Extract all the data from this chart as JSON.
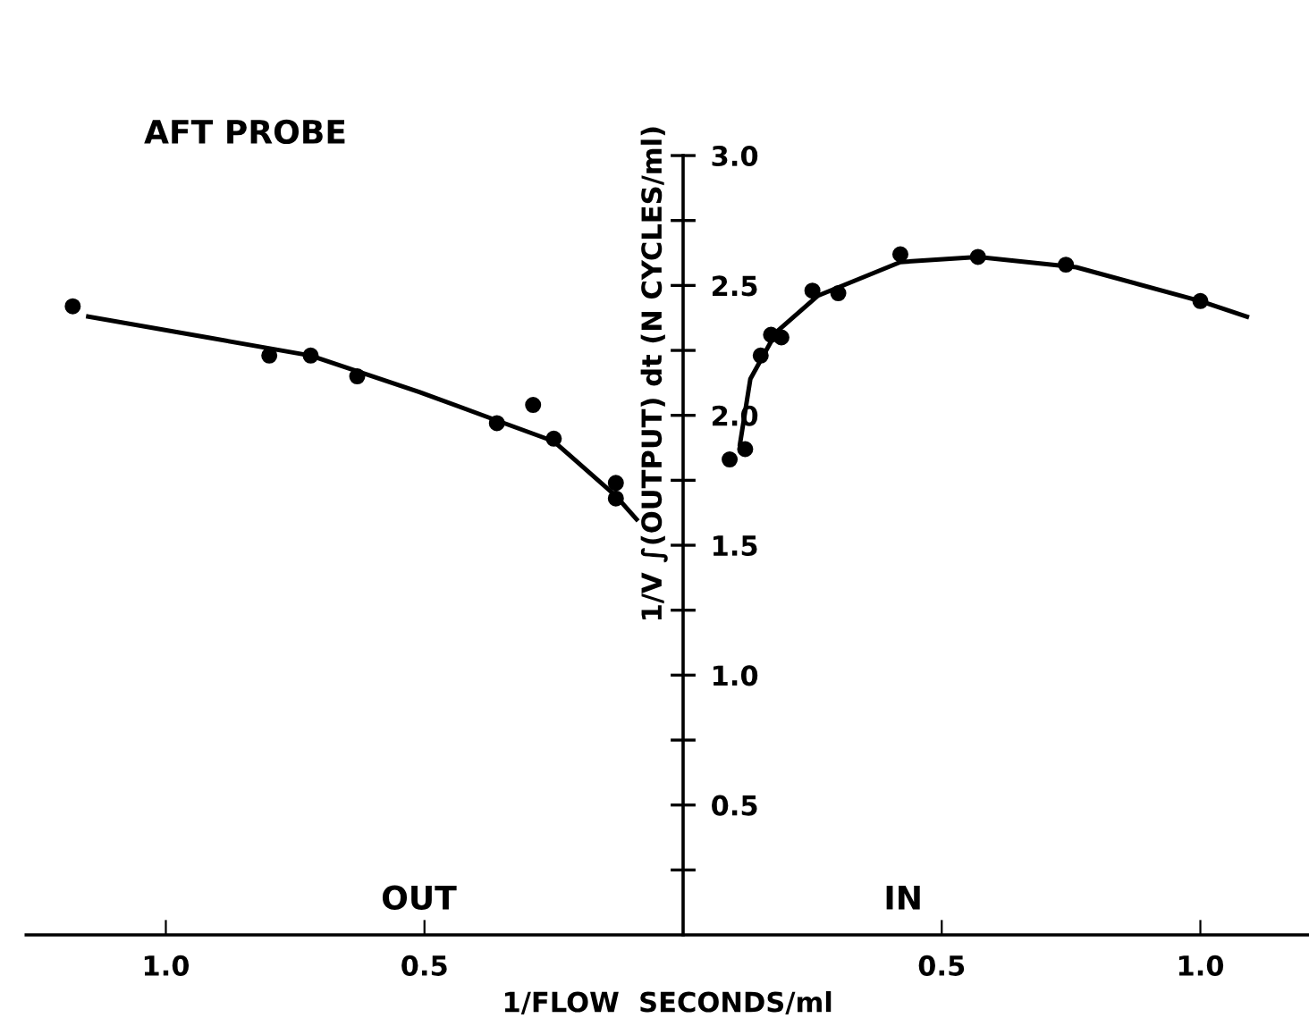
{
  "chart_data": {
    "type": "scatter",
    "xlabel": "1/FLOW  SECONDS/ml",
    "ylabel": "1/V ∫(OUTPUT) dt (N CYCLES/ml)",
    "annotations": [
      "AFT PROBE",
      "OUT",
      "IN"
    ],
    "xlim": [
      -1.27,
      1.21
    ],
    "ylim": [
      0,
      3.0
    ],
    "xticks": [
      {
        "value": -1.0,
        "label": "1.0"
      },
      {
        "value": -0.5,
        "label": "0.5"
      },
      0.5,
      {
        "value": 1.0,
        "label": "1.0"
      }
    ],
    "yticks": [
      {
        "value": 0.25,
        "label": null
      },
      0.5,
      {
        "value": 0.75,
        "label": null
      },
      {
        "value": 1.0,
        "label": "1.0"
      },
      {
        "value": 1.25,
        "label": null
      },
      1.5,
      {
        "value": 1.75,
        "label": null
      },
      {
        "value": 2.0,
        "label": "2.0"
      },
      {
        "value": 2.25,
        "label": null
      },
      2.5,
      {
        "value": 2.75,
        "label": null
      },
      {
        "value": 3.0,
        "label": "3.0"
      }
    ],
    "grid": false,
    "series": [
      {
        "color": "#000000",
        "marker": "circle",
        "x": [
          -1.18,
          -0.8,
          -0.72,
          -0.63,
          -0.36,
          -0.29,
          -0.25,
          -0.13,
          -0.13
        ],
        "values": [
          2.42,
          2.23,
          2.23,
          2.15,
          1.97,
          2.04,
          1.91,
          1.74,
          1.68
        ]
      },
      {
        "type": "line",
        "color": "#000000",
        "marker": "none",
        "line_style": "solid",
        "x": [
          -1.15,
          -0.92,
          -0.72,
          -0.51,
          -0.36,
          -0.25,
          -0.13,
          -0.09
        ],
        "values": [
          2.38,
          2.3,
          2.23,
          2.09,
          1.98,
          1.9,
          1.69,
          1.6
        ]
      },
      {
        "color": "#000000",
        "marker": "circle",
        "x": [
          0.09,
          0.12,
          0.15,
          0.17,
          0.19,
          0.25,
          0.3,
          0.42,
          0.57,
          0.74,
          1.0
        ],
        "values": [
          1.83,
          1.87,
          2.23,
          2.31,
          2.3,
          2.48,
          2.47,
          2.62,
          2.61,
          2.58,
          2.44
        ]
      },
      {
        "type": "line",
        "color": "#000000",
        "marker": "none",
        "line_style": "solid",
        "x": [
          0.11,
          0.13,
          0.18,
          0.26,
          0.42,
          0.57,
          0.76,
          1.0,
          1.09
        ],
        "values": [
          1.89,
          2.14,
          2.32,
          2.46,
          2.59,
          2.61,
          2.57,
          2.44,
          2.38
        ]
      }
    ]
  }
}
